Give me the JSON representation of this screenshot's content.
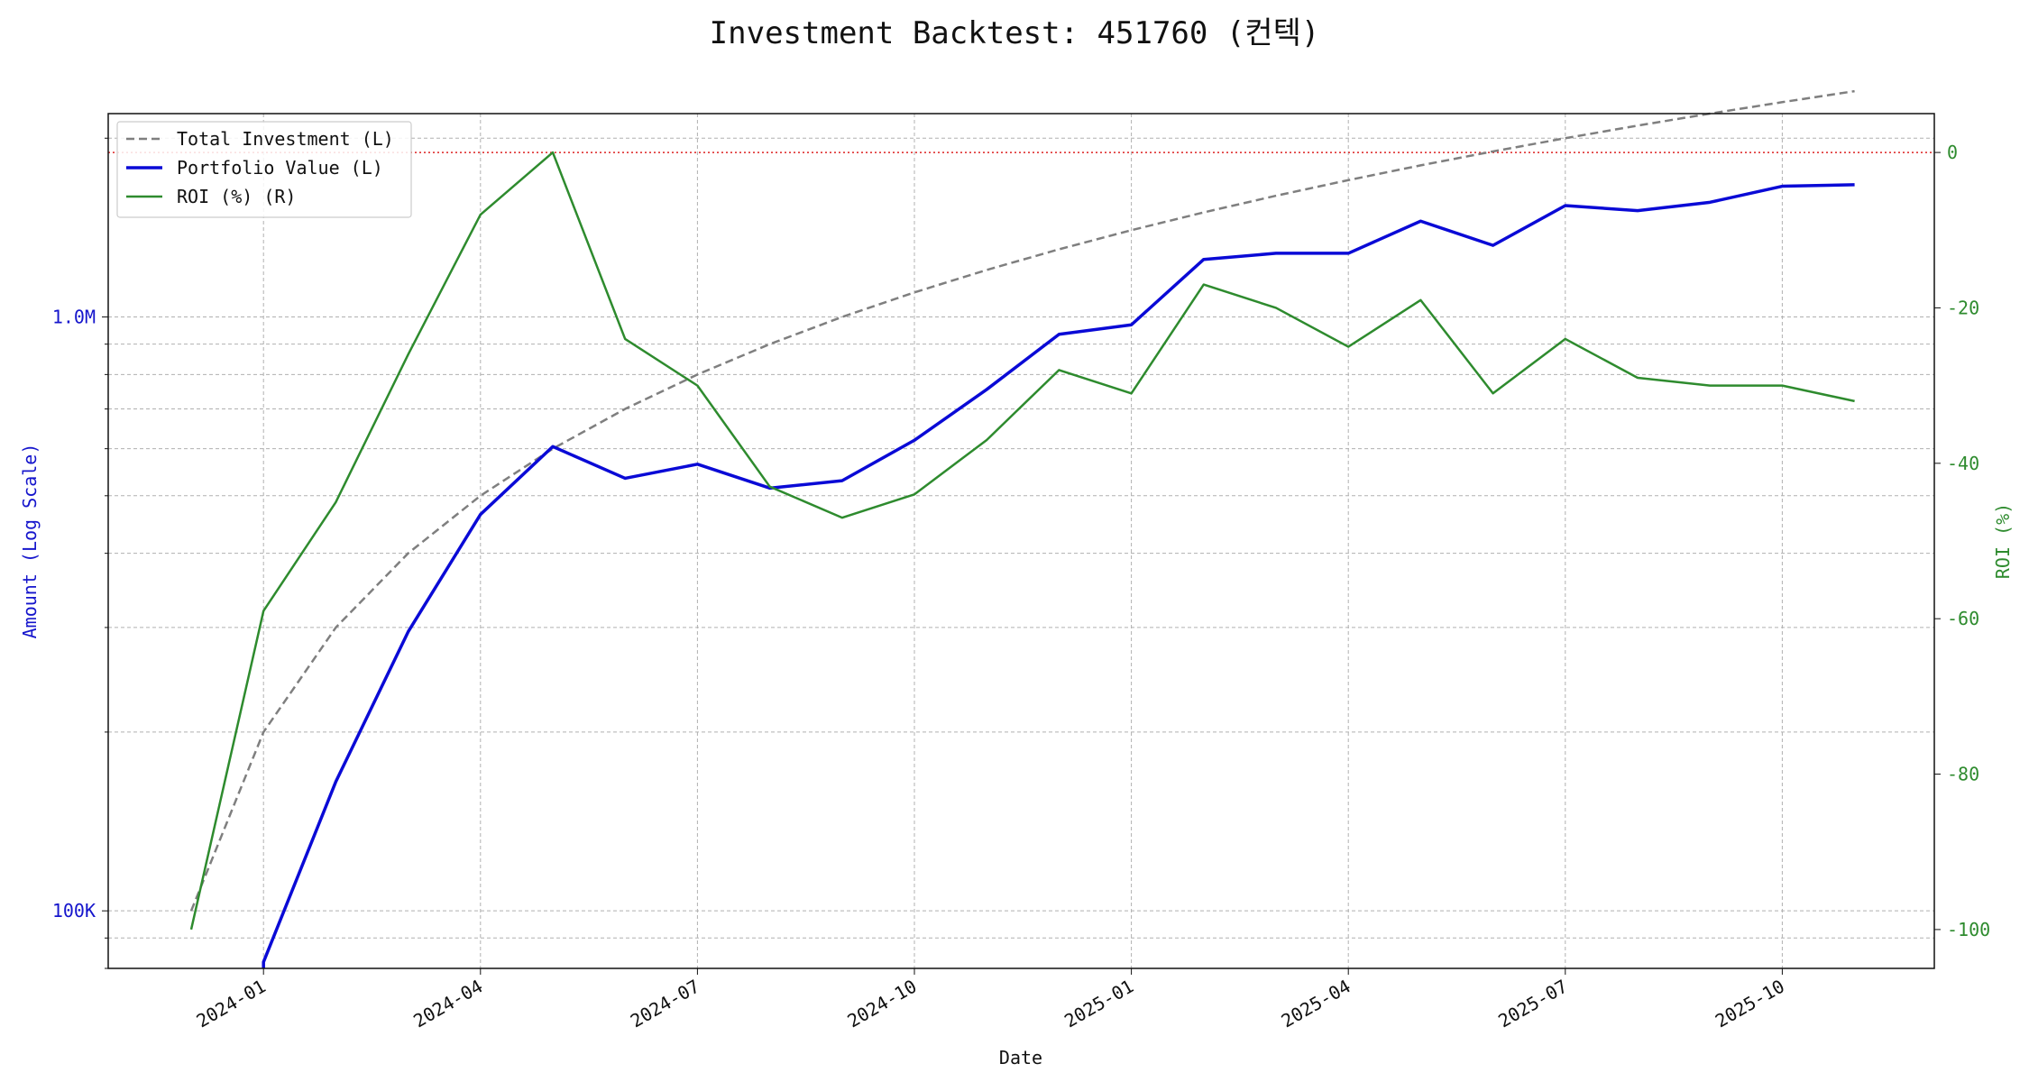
{
  "chart_data": {
    "type": "line",
    "title": "Investment Backtest: 451760 (컨텍)",
    "xlabel": "Date",
    "ylabel_left": "Amount (Log Scale)",
    "ylabel_right": "ROI (%)",
    "x_tick_labels": [
      "2024-01",
      "2024-04",
      "2024-07",
      "2024-10",
      "2025-01",
      "2025-04",
      "2025-07",
      "2025-10"
    ],
    "y_left_scale": "log",
    "y_left_ticks": [
      {
        "value": 100000,
        "label": "100K"
      },
      {
        "value": 1000000,
        "label": "1.0M"
      }
    ],
    "y_left_range": [
      80000,
      2200000
    ],
    "y_right_ticks": [
      0,
      -20,
      -40,
      -60,
      -80,
      -100
    ],
    "y_right_range": [
      -105,
      5
    ],
    "grid": true,
    "legend_position": "top-left",
    "reference_line": {
      "axis": "right",
      "value": 0,
      "style": "dotted",
      "color": "#dd2222"
    },
    "x": [
      "2023-12",
      "2024-01",
      "2024-02",
      "2024-03",
      "2024-04",
      "2024-05",
      "2024-06",
      "2024-07",
      "2024-08",
      "2024-09",
      "2024-10",
      "2024-11",
      "2024-12",
      "2025-01",
      "2025-02",
      "2025-03",
      "2025-04",
      "2025-05",
      "2025-06",
      "2025-07",
      "2025-08",
      "2025-09",
      "2025-10",
      "2025-11"
    ],
    "series": [
      {
        "name": "Total Investment (L)",
        "axis": "left",
        "style": "dashed",
        "color": "#7f7f7f",
        "values": [
          100000,
          200000,
          300000,
          400000,
          500000,
          600000,
          700000,
          800000,
          900000,
          1000000,
          1100000,
          1200000,
          1300000,
          1400000,
          1500000,
          1600000,
          1700000,
          1800000,
          1900000,
          2000000,
          2100000,
          2200000,
          2300000,
          2400000
        ]
      },
      {
        "name": "Portfolio Value (L)",
        "axis": "left",
        "style": "solid",
        "color": "#0a0ad6",
        "values": [
          null,
          82000,
          165000,
          295000,
          465000,
          605000,
          535000,
          565000,
          515000,
          530000,
          620000,
          755000,
          935000,
          970000,
          1250000,
          1280000,
          1280000,
          1450000,
          1320000,
          1540000,
          1510000,
          1560000,
          1660000,
          1670000
        ]
      },
      {
        "name": "ROI (%) (R)",
        "axis": "right",
        "style": "solid",
        "color": "#2e8b2e",
        "values": [
          -100,
          -59,
          -45,
          -26,
          -8,
          0,
          -24,
          -30,
          -43,
          -47,
          -44,
          -37,
          -28,
          -31,
          -17,
          -20,
          -25,
          -19,
          -31,
          -24,
          -29,
          -30,
          -30,
          -32
        ]
      }
    ]
  }
}
